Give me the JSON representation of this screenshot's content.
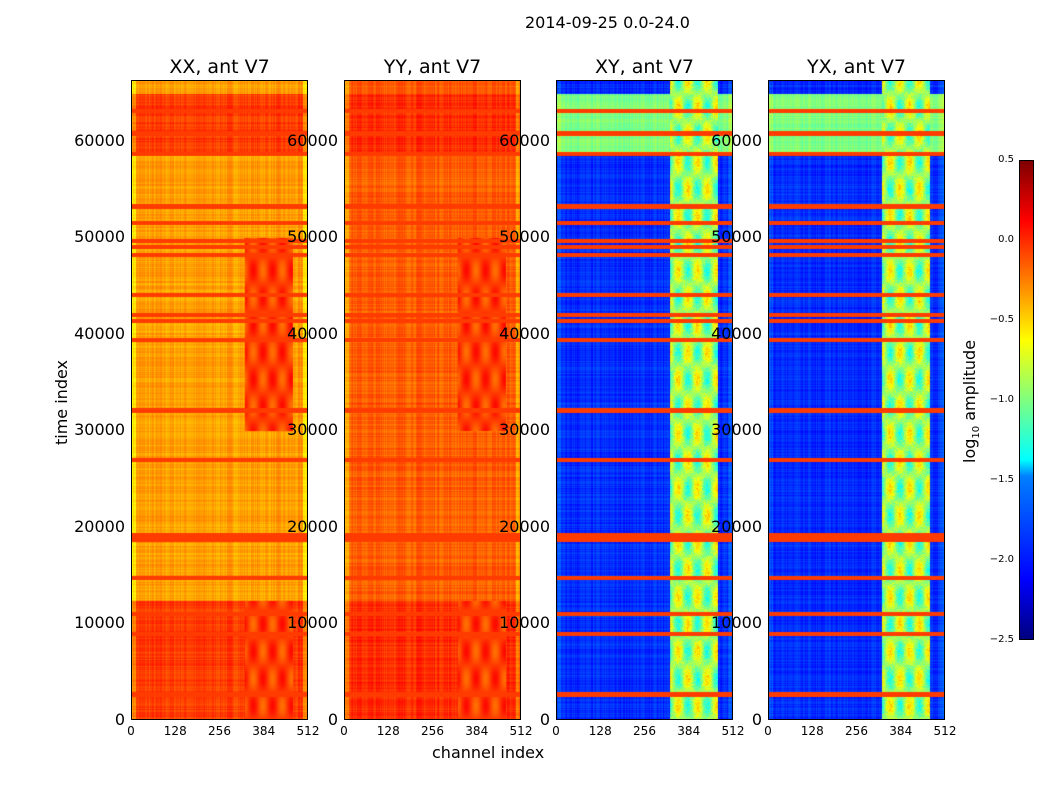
{
  "figure_title": "2014-09-25 0.0-24.0",
  "chart_data": {
    "type": "heatmap",
    "title": "2014-09-25 0.0-24.0",
    "xlabel": "channel index",
    "ylabel": "time index",
    "xlim": [
      0,
      512
    ],
    "ylim": [
      0,
      66300
    ],
    "xticks": [
      "0",
      "128",
      "256",
      "384",
      "512"
    ],
    "yticks": [
      "0",
      "10000",
      "20000",
      "30000",
      "40000",
      "50000",
      "60000"
    ],
    "colormap": "jet",
    "colorbar": {
      "label": "log10 amplitude",
      "label_main": "log",
      "label_sub": "10",
      "label_rest": " amplitude",
      "range": [
        -2.5,
        0.5
      ],
      "ticks": [
        "0.5",
        "0.0",
        "−0.5",
        "−1.0",
        "−1.5",
        "−2.0",
        "−2.5"
      ]
    },
    "flagged_time_rows": [
      2600,
      8900,
      11000,
      14700,
      18700,
      19200,
      27000,
      32100,
      39400,
      41400,
      42000,
      44100,
      48300,
      49100,
      49700,
      51600,
      53300,
      58800,
      60900,
      63200
    ],
    "panels": [
      {
        "title": "XX, ant V7",
        "base_level": -0.35,
        "rfi_channels": [
          330,
          470
        ],
        "rfi_level": -0.05,
        "high_time_bands": [
          [
            0,
            12300
          ],
          [
            59000,
            65000
          ]
        ],
        "high_band_level": -0.05
      },
      {
        "title": "YY, ant V7",
        "base_level": -0.15,
        "rfi_channels": [
          330,
          470
        ],
        "rfi_level": -0.05,
        "high_time_bands": [
          [
            0,
            12300
          ],
          [
            59000,
            65000
          ]
        ],
        "high_band_level": 0.0
      },
      {
        "title": "XY, ant V7",
        "base_level": -2.0,
        "rfi_channels": [
          330,
          470
        ],
        "rfi_level": -0.9,
        "high_time_bands": [
          [
            59000,
            65000
          ]
        ],
        "high_band_level": -1.0
      },
      {
        "title": "YX, ant V7",
        "base_level": -2.0,
        "rfi_channels": [
          330,
          470
        ],
        "rfi_level": -0.9,
        "high_time_bands": [
          [
            59000,
            65000
          ]
        ],
        "high_band_level": -1.0
      }
    ]
  }
}
